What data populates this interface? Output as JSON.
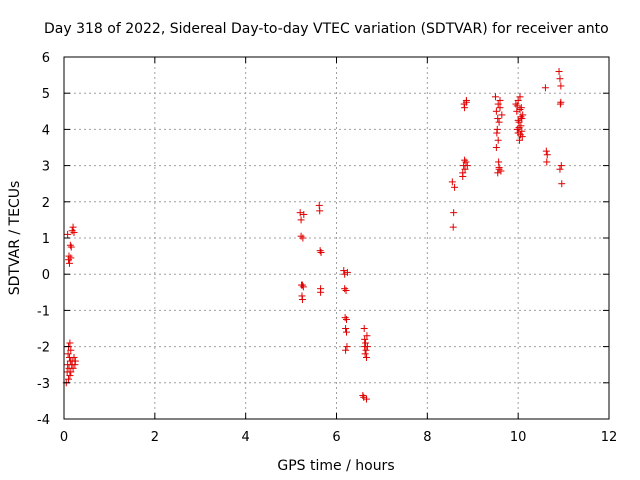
{
  "chart_data": {
    "type": "scatter",
    "title": "Day 318 of 2022, Sidereal Day-to-day VTEC variation (SDTVAR) for receiver anto",
    "xlabel": "GPS time / hours",
    "ylabel": "SDTVAR / TECUs",
    "xlim": [
      0,
      12
    ],
    "ylim": [
      -4,
      6
    ],
    "xticks": [
      0,
      2,
      4,
      6,
      8,
      10,
      12
    ],
    "yticks": [
      -4,
      -3,
      -2,
      -1,
      0,
      1,
      2,
      3,
      4,
      5,
      6
    ],
    "grid": true,
    "marker": "+",
    "colors": {
      "points": "#e00000",
      "grid": "#a0a0a0",
      "axes": "#000000"
    },
    "series": [
      {
        "name": "SDTVAR",
        "x": [
          0.05,
          0.07,
          0.08,
          0.09,
          0.1,
          0.1,
          0.11,
          0.12,
          0.13,
          0.13,
          0.14,
          0.15,
          0.15,
          0.17,
          0.18,
          0.2,
          0.22,
          0.24,
          0.25,
          0.08,
          0.1,
          0.11,
          0.12,
          0.14,
          0.15,
          0.16,
          0.18,
          0.2,
          0.22,
          5.2,
          5.22,
          5.22,
          5.23,
          5.24,
          5.25,
          5.25,
          5.26,
          5.27,
          5.28,
          5.62,
          5.63,
          5.64,
          5.65,
          5.65,
          5.66,
          6.16,
          6.18,
          6.18,
          6.19,
          6.2,
          6.2,
          6.21,
          6.22,
          6.22,
          6.23,
          6.24,
          6.58,
          6.6,
          6.61,
          6.62,
          6.62,
          6.63,
          6.64,
          6.65,
          6.66,
          6.66,
          6.67,
          6.68,
          8.55,
          8.57,
          8.58,
          8.6,
          8.78,
          8.8,
          8.81,
          8.82,
          8.83,
          8.85,
          8.86,
          8.88,
          8.78,
          8.82,
          8.86,
          9.5,
          9.52,
          9.53,
          9.55,
          9.55,
          9.56,
          9.57,
          9.58,
          9.58,
          9.6,
          9.62,
          9.64,
          9.52,
          9.54,
          9.56,
          9.58,
          9.6,
          9.95,
          9.97,
          9.98,
          10.0,
          10.0,
          10.02,
          10.03,
          10.04,
          10.05,
          10.06,
          10.07,
          10.08,
          10.09,
          10.1,
          9.98,
          10.02,
          10.06,
          10.08,
          10.04,
          10.0,
          10.6,
          10.62,
          10.63,
          10.64,
          10.9,
          10.92,
          10.93,
          10.94,
          10.95,
          10.96,
          10.92,
          10.94
        ],
        "y": [
          -3.0,
          -2.7,
          -2.5,
          -2.2,
          -2.0,
          -2.9,
          -2.6,
          -2.3,
          -1.9,
          -2.8,
          -2.4,
          -2.1,
          -2.7,
          -2.5,
          -2.4,
          -2.6,
          -2.3,
          -2.5,
          -2.4,
          1.1,
          0.4,
          0.5,
          0.3,
          0.8,
          0.45,
          0.75,
          1.2,
          1.3,
          1.15,
          1.7,
          1.5,
          1.05,
          -0.3,
          -0.6,
          -0.3,
          -0.7,
          1.0,
          -0.35,
          1.65,
          1.9,
          1.75,
          0.65,
          -0.4,
          -0.5,
          0.6,
          0.1,
          0.0,
          -0.4,
          -1.2,
          -1.5,
          -2.1,
          -0.45,
          -1.25,
          -1.6,
          -2.0,
          0.05,
          -3.35,
          -3.4,
          -1.5,
          -1.8,
          -2.0,
          -2.2,
          -1.9,
          -2.1,
          -2.3,
          -3.45,
          -1.7,
          -2.0,
          2.55,
          1.3,
          1.7,
          2.4,
          2.8,
          3.0,
          4.7,
          4.6,
          2.9,
          3.1,
          4.8,
          3.0,
          2.7,
          3.15,
          4.75,
          4.9,
          4.5,
          3.9,
          2.8,
          4.3,
          4.7,
          3.1,
          4.2,
          2.9,
          4.6,
          2.85,
          4.4,
          3.5,
          4.0,
          3.7,
          2.95,
          4.8,
          4.7,
          4.5,
          4.0,
          3.9,
          4.8,
          4.2,
          3.7,
          4.9,
          3.85,
          4.1,
          4.6,
          4.3,
          3.8,
          4.4,
          4.65,
          4.05,
          4.35,
          3.95,
          4.55,
          4.25,
          5.15,
          3.4,
          3.1,
          3.3,
          5.6,
          5.4,
          4.7,
          5.2,
          3.0,
          2.5,
          2.9,
          4.75
        ]
      }
    ]
  }
}
